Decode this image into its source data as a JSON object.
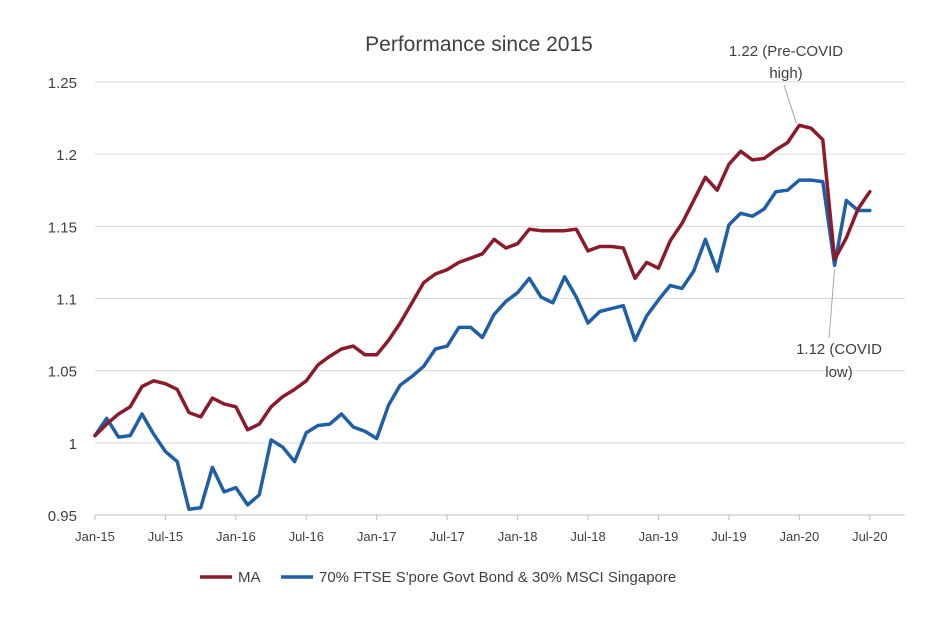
{
  "chart_data": {
    "type": "line",
    "title": "Performance since 2015",
    "xlabel": "",
    "ylabel": "",
    "ylim": [
      0.95,
      1.25
    ],
    "yticks": [
      0.95,
      1,
      1.05,
      1.1,
      1.15,
      1.2,
      1.25
    ],
    "ytick_labels": [
      "0.95",
      "1",
      "1.05",
      "1.1",
      "1.15",
      "1.2",
      "1.25"
    ],
    "xtick_labels": [
      "Jan-15",
      "Jul-15",
      "Jan-16",
      "Jul-16",
      "Jan-17",
      "Jul-17",
      "Jan-18",
      "Jul-18",
      "Jan-19",
      "Jul-19",
      "Jan-20",
      "Jul-20"
    ],
    "xtick_months": [
      0,
      6,
      12,
      18,
      24,
      30,
      36,
      42,
      48,
      54,
      60,
      66
    ],
    "grid": true,
    "legend_position": "bottom",
    "series": [
      {
        "name": "MA",
        "color": "#8b1a2b",
        "values": [
          1.005,
          1.013,
          1.02,
          1.025,
          1.039,
          1.043,
          1.041,
          1.037,
          1.021,
          1.018,
          1.031,
          1.027,
          1.025,
          1.009,
          1.013,
          1.025,
          1.032,
          1.037,
          1.043,
          1.054,
          1.06,
          1.065,
          1.067,
          1.061,
          1.061,
          1.071,
          1.083,
          1.097,
          1.111,
          1.117,
          1.12,
          1.125,
          1.128,
          1.131,
          1.141,
          1.135,
          1.138,
          1.148,
          1.147,
          1.147,
          1.147,
          1.148,
          1.133,
          1.136,
          1.136,
          1.135,
          1.114,
          1.125,
          1.121,
          1.14,
          1.152,
          1.168,
          1.184,
          1.175,
          1.193,
          1.202,
          1.196,
          1.197,
          1.203,
          1.208,
          1.22,
          1.218,
          1.21,
          1.127,
          1.142,
          1.162,
          1.174
        ]
      },
      {
        "name": "70% FTSE S'pore Govt Bond & 30% MSCI Singapore",
        "color": "#1f5fa8",
        "values": [
          1.005,
          1.017,
          1.004,
          1.005,
          1.02,
          1.006,
          0.994,
          0.987,
          0.954,
          0.955,
          0.983,
          0.966,
          0.969,
          0.957,
          0.964,
          1.002,
          0.997,
          0.987,
          1.007,
          1.012,
          1.013,
          1.02,
          1.011,
          1.008,
          1.003,
          1.026,
          1.04,
          1.046,
          1.053,
          1.065,
          1.067,
          1.08,
          1.08,
          1.073,
          1.089,
          1.098,
          1.104,
          1.114,
          1.101,
          1.097,
          1.115,
          1.101,
          1.083,
          1.091,
          1.093,
          1.095,
          1.071,
          1.088,
          1.099,
          1.109,
          1.107,
          1.119,
          1.141,
          1.119,
          1.151,
          1.159,
          1.157,
          1.162,
          1.174,
          1.175,
          1.182,
          1.182,
          1.181,
          1.123,
          1.168,
          1.161,
          1.161
        ]
      }
    ],
    "annotations": [
      {
        "line1": "1.22  (Pre-COVID",
        "line2": "high)",
        "month": 60,
        "value": 1.22
      },
      {
        "line1": "1.12  (COVID",
        "line2": "low)",
        "month": 63,
        "value": 1.123
      }
    ]
  }
}
